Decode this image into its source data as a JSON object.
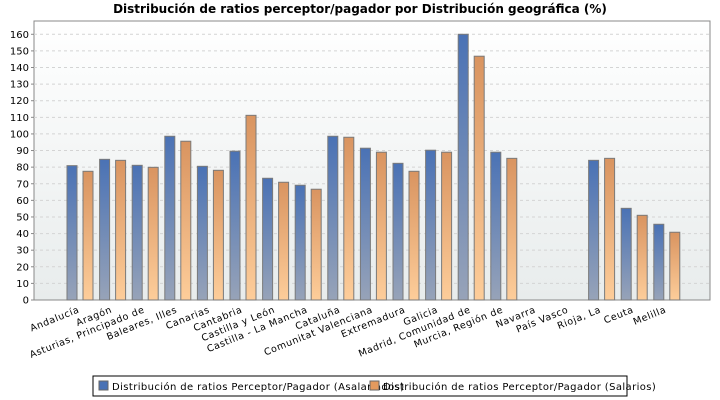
{
  "chart_data": {
    "type": "bar",
    "title": "Distribución de ratios perceptor/pagador por Distribución geográfica (%)",
    "xlabel": "",
    "ylabel": "",
    "ylim": [
      0,
      168
    ],
    "yticks": [
      0,
      10,
      20,
      30,
      40,
      50,
      60,
      70,
      80,
      90,
      100,
      110,
      120,
      130,
      140,
      150,
      160
    ],
    "grid": true,
    "legend_position": "bottom",
    "categories": [
      "Andalucía",
      "Aragón",
      "Asturias, Principado de",
      "Baleares, Illes",
      "Canarias",
      "Cantabria",
      "Castilla y León",
      "Castilla - La Mancha",
      "Cataluña",
      "Comunitat Valenciana",
      "Extremadura",
      "Galicia",
      "Madrid, Comunidad de",
      "Murcia, Región de",
      "Navarra",
      "País Vasco",
      "Rioja, La",
      "Ceuta",
      "Melilla"
    ],
    "series": [
      {
        "name": "Distribución de ratios Perceptor/Pagador (Asalariados)",
        "color": "#4a72b5",
        "values": [
          80.9,
          84.7,
          81.1,
          98.6,
          80.5,
          89.6,
          73.3,
          69.1,
          98.6,
          91.4,
          82.3,
          90.2,
          160.0,
          89.0,
          null,
          null,
          84.1,
          55.2,
          45.6
        ]
      },
      {
        "name": "Distribución de ratios Perceptor/Pagador (Salarios)",
        "color": "#e39a5e",
        "values": [
          77.5,
          84.1,
          79.9,
          95.6,
          78.1,
          111.2,
          70.9,
          66.7,
          98.0,
          89.0,
          77.5,
          89.0,
          146.8,
          85.3,
          null,
          null,
          85.3,
          51.0,
          40.8
        ]
      }
    ]
  }
}
